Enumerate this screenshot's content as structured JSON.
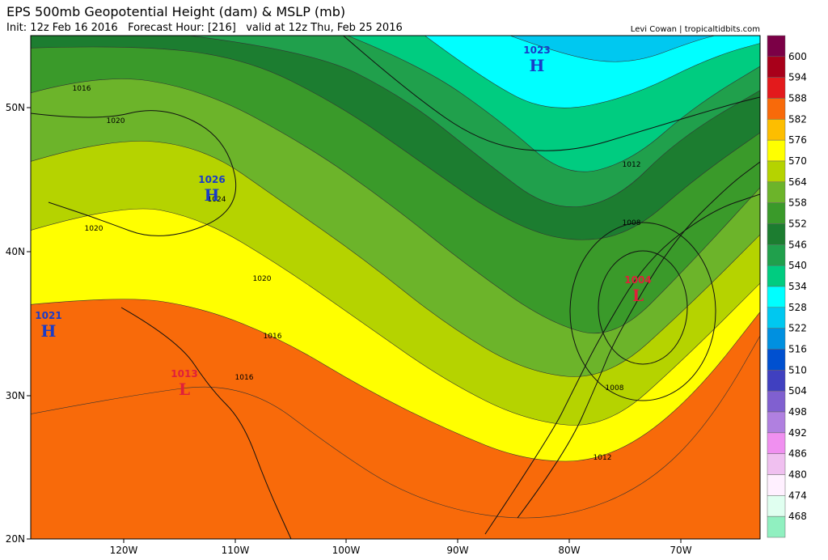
{
  "header": {
    "title": "EPS 500mb Geopotential Height (dam) & MSLP (mb)",
    "subtitle": "Init: 12z Feb 16 2016   Forecast Hour: [216]   valid at 12z Thu, Feb 25 2016",
    "credit": "Levi Cowan | tropicaltidbits.com"
  },
  "axes": {
    "lat_labels": [
      "50N",
      "40N",
      "30N",
      "20N"
    ],
    "lon_labels": [
      "120W",
      "110W",
      "100W",
      "90W",
      "80W",
      "70W"
    ]
  },
  "colorbar": {
    "labels": [
      600,
      594,
      588,
      582,
      576,
      570,
      564,
      558,
      552,
      546,
      540,
      534,
      528,
      522,
      516,
      510,
      504,
      498,
      492,
      486,
      480,
      474,
      468
    ],
    "colors": [
      "#7b0046",
      "#a8001a",
      "#e31a1c",
      "#f86a0a",
      "#fdbe00",
      "#ffff00",
      "#b5d300",
      "#6cb42a",
      "#3a9a2a",
      "#1c7d30",
      "#20a04c",
      "#00cc80",
      "#00ffff",
      "#00c8f0",
      "#0090e0",
      "#0050d0",
      "#4040c0",
      "#8060d0",
      "#b080e0",
      "#f090f0",
      "#f0c0f0",
      "#fff0ff",
      "#e0fff0",
      "#90f0c0"
    ]
  },
  "pressure_centers": [
    {
      "value": "1023",
      "letter": "H"
    },
    {
      "value": "1026",
      "letter": "H"
    },
    {
      "value": "1021",
      "letter": "H"
    },
    {
      "value": "1004",
      "letter": "L"
    },
    {
      "value": "1013",
      "letter": "L"
    }
  ],
  "isobar_labels": [
    "1016",
    "1020",
    "1024",
    "1020",
    "1020",
    "1016",
    "1016",
    "1012",
    "1008",
    "1008",
    "1012"
  ]
}
